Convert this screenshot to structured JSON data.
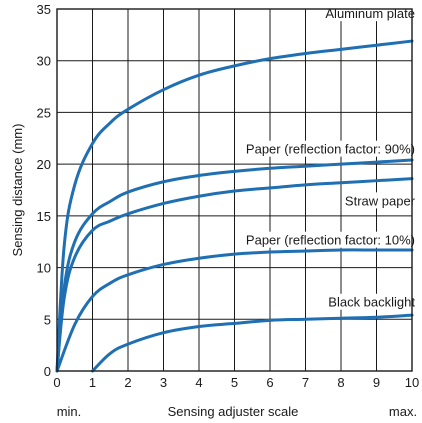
{
  "chart_data": {
    "type": "line",
    "title": "",
    "xlabel": "Sensing adjuster scale",
    "ylabel": "Sensing distance (mm)",
    "x_min_label": "min.",
    "x_max_label": "max.",
    "xlim": [
      0,
      10
    ],
    "ylim": [
      0,
      35
    ],
    "xticks": [
      "0",
      "1",
      "2",
      "3",
      "4",
      "5",
      "6",
      "7",
      "8",
      "9",
      "10"
    ],
    "yticks": [
      "0",
      "5",
      "10",
      "15",
      "20",
      "25",
      "30",
      "35"
    ],
    "grid": true,
    "line_color": "#1f6fb2",
    "series": [
      {
        "name": "Aluminum plate",
        "x": [
          0,
          0.2,
          0.5,
          1,
          1.5,
          2,
          3,
          4,
          5,
          6,
          7,
          8,
          9,
          10
        ],
        "y": [
          0,
          12,
          18,
          22,
          24,
          25.3,
          27.2,
          28.6,
          29.5,
          30.2,
          30.7,
          31.1,
          31.5,
          31.9
        ]
      },
      {
        "name": "Paper (reflection factor: 90%)",
        "x": [
          0,
          0.2,
          0.5,
          1,
          1.5,
          2,
          3,
          4,
          5,
          6,
          7,
          8,
          9,
          10
        ],
        "y": [
          0,
          8,
          12.5,
          15.2,
          16.4,
          17.3,
          18.3,
          18.9,
          19.3,
          19.6,
          19.8,
          20,
          20.2,
          20.4
        ]
      },
      {
        "name": "Straw paper",
        "x": [
          0,
          0.2,
          0.5,
          1,
          1.5,
          2,
          3,
          4,
          5,
          6,
          7,
          8,
          9,
          10
        ],
        "y": [
          0,
          7,
          11,
          13.6,
          14.5,
          15.2,
          16.2,
          16.9,
          17.4,
          17.7,
          18,
          18.2,
          18.4,
          18.6
        ]
      },
      {
        "name": "Paper (reflection factor: 10%)",
        "x": [
          0,
          0.5,
          1,
          1.5,
          2,
          3,
          4,
          5,
          6,
          7,
          8,
          9,
          10
        ],
        "y": [
          0,
          4.5,
          7.2,
          8.5,
          9.3,
          10.3,
          10.9,
          11.3,
          11.5,
          11.6,
          11.7,
          11.7,
          11.7
        ]
      },
      {
        "name": "Black backlight",
        "x": [
          1,
          1.5,
          2,
          3,
          4,
          5,
          6,
          7,
          8,
          9,
          10
        ],
        "y": [
          0,
          1.7,
          2.6,
          3.7,
          4.3,
          4.6,
          4.9,
          5,
          5.1,
          5.2,
          5.4
        ]
      }
    ]
  }
}
